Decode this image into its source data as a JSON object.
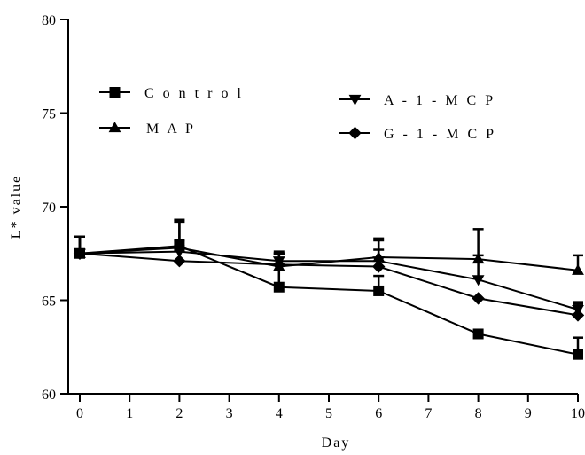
{
  "chart_data": {
    "type": "line",
    "title": "",
    "xlabel": "Day",
    "ylabel": "L* value",
    "xlim": [
      0,
      10
    ],
    "ylim": [
      60,
      80
    ],
    "x_ticks": [
      "0",
      "1",
      "2",
      "3",
      "4",
      "5",
      "6",
      "7",
      "8",
      "9",
      "10"
    ],
    "y_ticks": [
      "60",
      "65",
      "70",
      "75",
      "80"
    ],
    "grid": false,
    "x": [
      0,
      2,
      4,
      6,
      8,
      10
    ],
    "series": [
      {
        "name": "Control",
        "marker": "square",
        "values": [
          67.5,
          67.9,
          65.7,
          65.5,
          63.2,
          62.1
        ],
        "errors": [
          0.9,
          1.3,
          1.8,
          0.8,
          0.0,
          0.9
        ]
      },
      {
        "name": "MAP",
        "marker": "triangle-up",
        "values": [
          67.5,
          67.8,
          66.8,
          67.3,
          67.2,
          66.6
        ],
        "errors": [
          0.9,
          1.5,
          0.8,
          1.0,
          1.6,
          0.8
        ]
      },
      {
        "name": "A-1-MCP",
        "marker": "triangle-down",
        "values": [
          67.5,
          67.6,
          67.1,
          67.1,
          66.1,
          64.5
        ],
        "errors": [
          0.9,
          0.6,
          0.4,
          1.1,
          1.3,
          0.4
        ]
      },
      {
        "name": "G-1-MCP",
        "marker": "diamond",
        "values": [
          67.5,
          67.1,
          66.9,
          66.8,
          65.1,
          64.2
        ],
        "errors": [
          0.9,
          0.8,
          0.6,
          0.9,
          0.0,
          0.6
        ]
      }
    ],
    "legend": [
      {
        "label": "C o n t r o l",
        "series": "Control"
      },
      {
        "label": "M A P",
        "series": "MAP"
      },
      {
        "label": "A - 1 - M C P",
        "series": "A-1-MCP"
      },
      {
        "label": "G - 1 - M C P",
        "series": "G-1-MCP"
      }
    ],
    "line_color": "#000000"
  }
}
